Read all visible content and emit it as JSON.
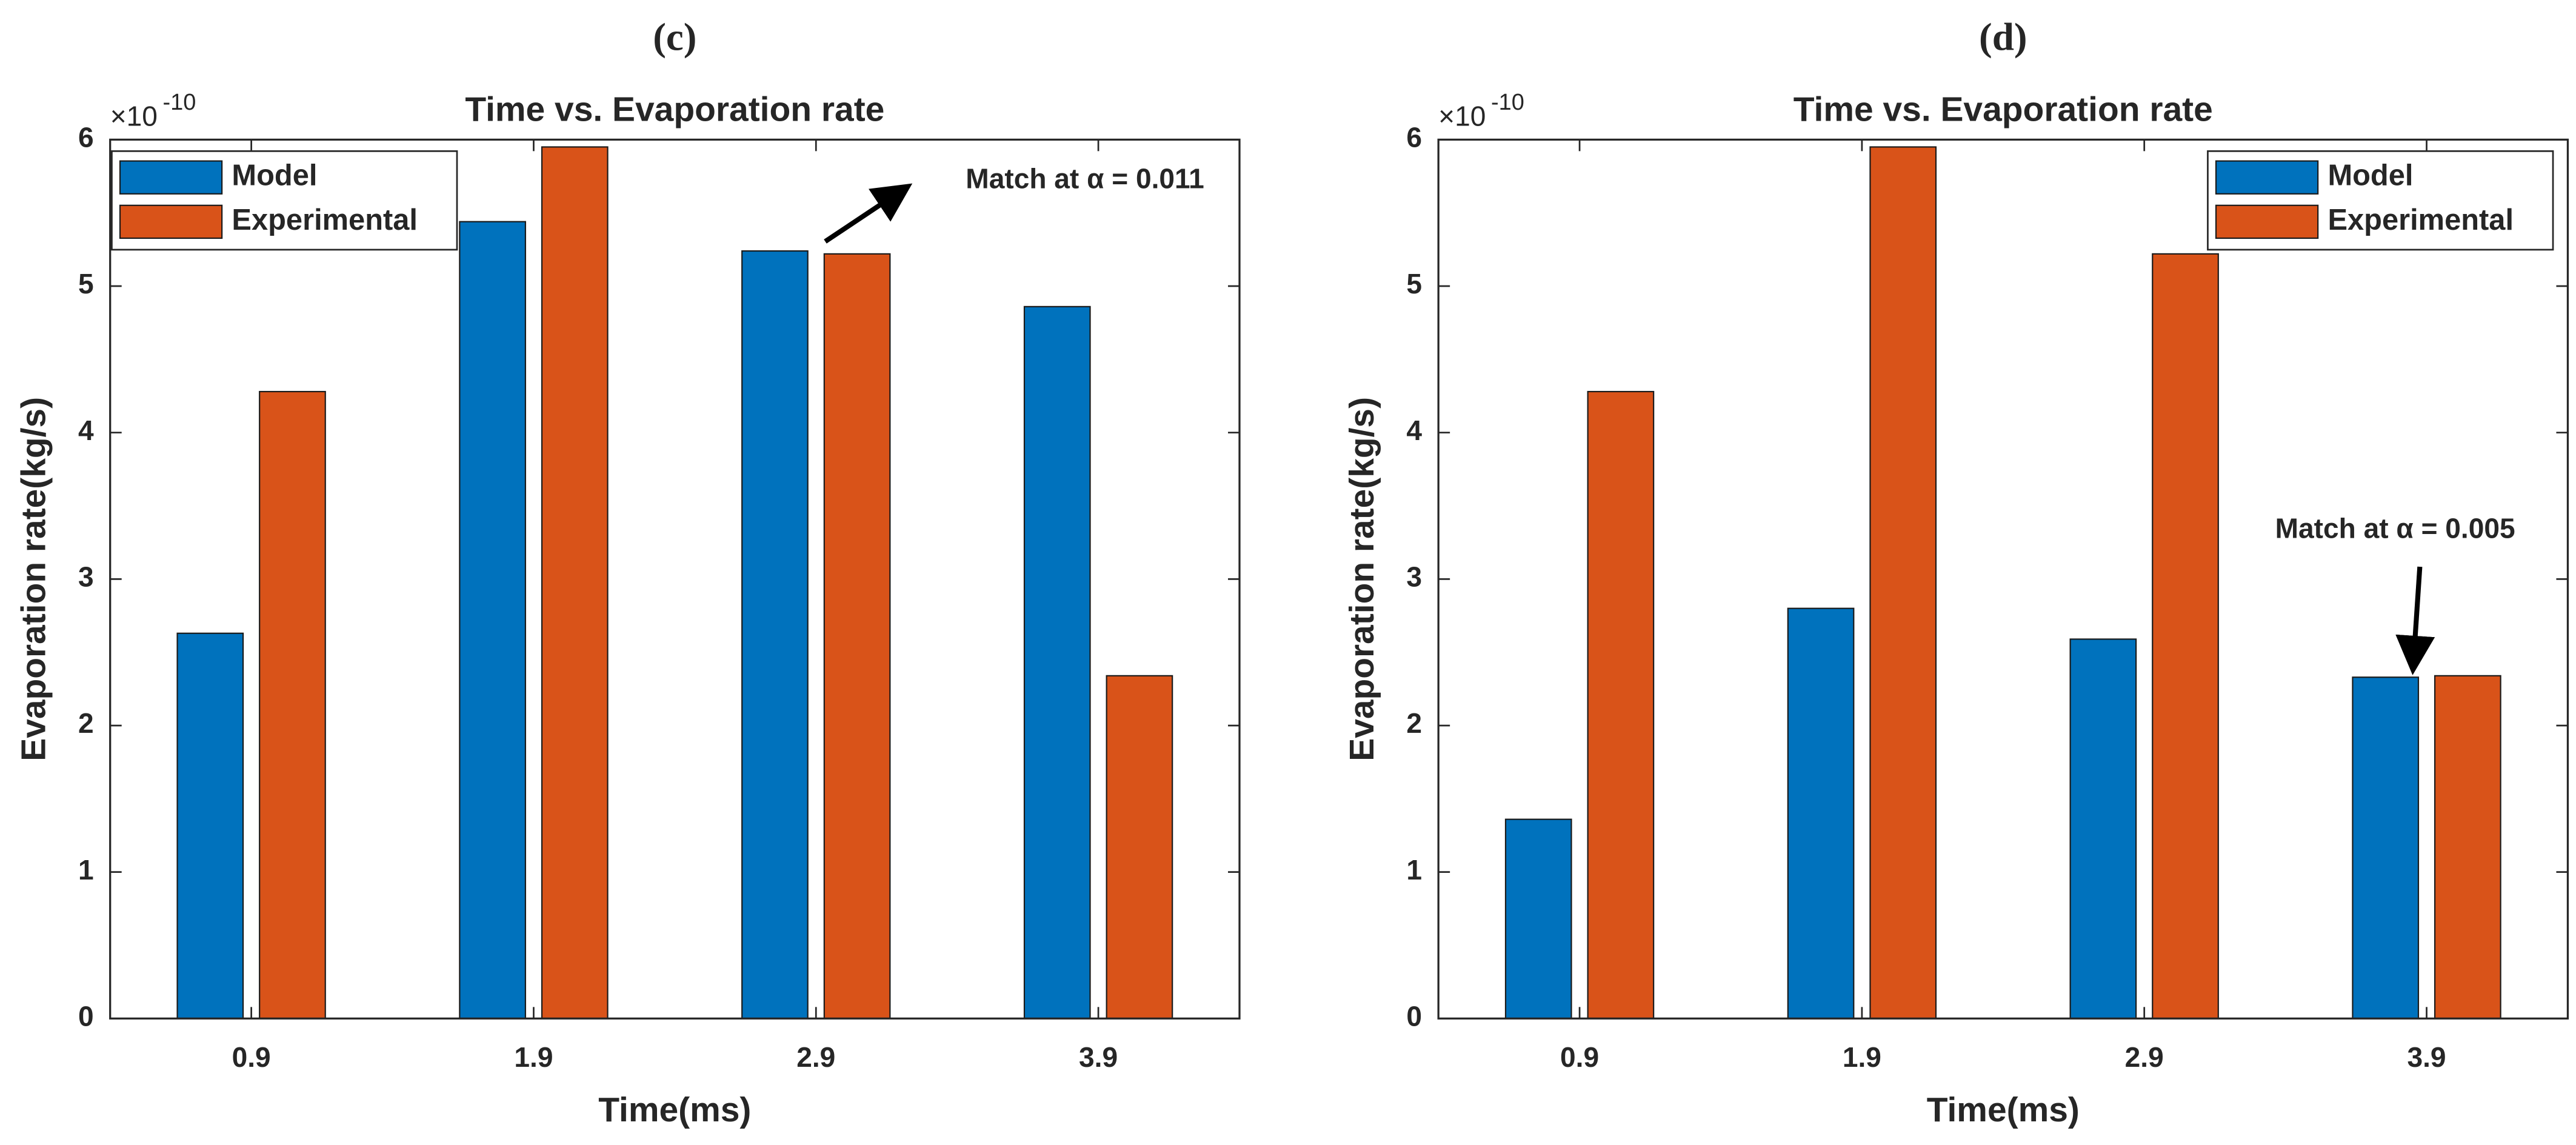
{
  "chart_data": [
    {
      "type": "bar",
      "panel_label": "(c)",
      "title": "Time vs. Evaporation rate",
      "x_label": "Time(ms)",
      "y_label": "Evaporation rate(kg/s)",
      "y_multiplier_base": "×10",
      "y_multiplier_exp": "-10",
      "categories": [
        "0.9",
        "1.9",
        "2.9",
        "3.9"
      ],
      "series": [
        {
          "name": "Model",
          "color": "#0072bd",
          "values": [
            2.63,
            5.44,
            5.24,
            4.86
          ]
        },
        {
          "name": "Experimental",
          "color": "#d95319",
          "values": [
            4.28,
            5.95,
            5.22,
            2.34
          ]
        }
      ],
      "ylim": [
        0,
        6
      ],
      "yticks": [
        0,
        1,
        2,
        3,
        4,
        5,
        6
      ],
      "legend": "upper left",
      "annotation": "Match at α = 0.011"
    },
    {
      "type": "bar",
      "panel_label": "(d)",
      "title": "Time vs. Evaporation rate",
      "x_label": "Time(ms)",
      "y_label": "Evaporation rate(kg/s)",
      "y_multiplier_base": "×10",
      "y_multiplier_exp": "-10",
      "categories": [
        "0.9",
        "1.9",
        "2.9",
        "3.9"
      ],
      "series": [
        {
          "name": "Model",
          "color": "#0072bd",
          "values": [
            1.36,
            2.8,
            2.59,
            2.33
          ]
        },
        {
          "name": "Experimental",
          "color": "#d95319",
          "values": [
            4.28,
            5.95,
            5.22,
            2.34
          ]
        }
      ],
      "ylim": [
        0,
        6
      ],
      "yticks": [
        0,
        1,
        2,
        3,
        4,
        5,
        6
      ],
      "legend": "upper right",
      "annotation": "Match at α = 0.005"
    }
  ]
}
